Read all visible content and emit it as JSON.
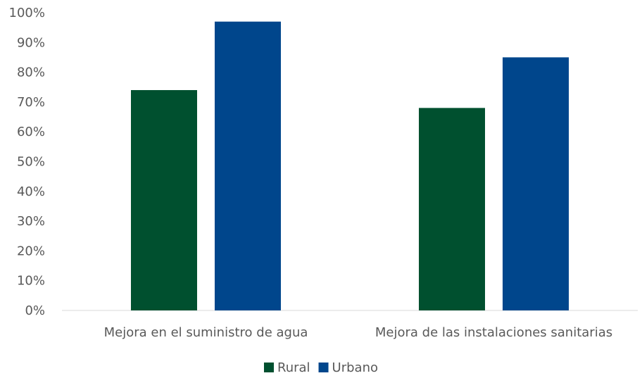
{
  "chart_data": {
    "type": "bar",
    "categories": [
      "Mejora en el suministro de agua",
      "Mejora de las instalaciones sanitarias"
    ],
    "series": [
      {
        "name": "Rural",
        "values": [
          74,
          68
        ],
        "color": "#00502F"
      },
      {
        "name": "Urbano",
        "values": [
          97,
          85
        ],
        "color": "#00468C"
      }
    ],
    "y_ticks": [
      "0%",
      "10%",
      "20%",
      "30%",
      "40%",
      "50%",
      "60%",
      "70%",
      "80%",
      "90%",
      "100%"
    ],
    "ylim": [
      0,
      100
    ],
    "grid": false,
    "legend_position": "bottom"
  }
}
